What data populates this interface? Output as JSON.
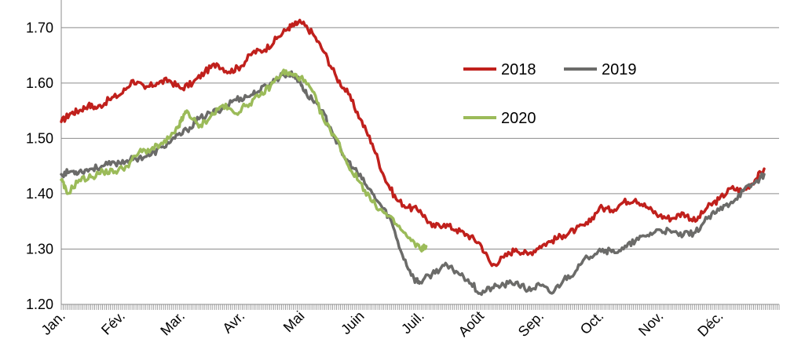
{
  "chart_data": {
    "type": "line",
    "title": "",
    "xlabel": "",
    "ylabel": "",
    "ylim": [
      1.2,
      1.75
    ],
    "yticks": [
      "1.20",
      "1.30",
      "1.40",
      "1.50",
      "1.60",
      "1.70"
    ],
    "grid": "horizontal",
    "legend_position": "top-right",
    "months": [
      "Jan.",
      "Fév.",
      "Mar.",
      "Avr.",
      "Mai",
      "Juin",
      "Juil.",
      "Août",
      "Sep.",
      "Oct.",
      "Nov.",
      "Déc."
    ],
    "series": [
      {
        "name": "2018",
        "color": "#c0201c",
        "x": [
          0,
          0.15,
          0.3,
          0.45,
          0.6,
          0.8,
          1.0,
          1.2,
          1.4,
          1.6,
          1.8,
          2.0,
          2.2,
          2.4,
          2.6,
          2.8,
          3.0,
          3.2,
          3.4,
          3.6,
          3.8,
          3.9,
          4.0,
          4.2,
          4.4,
          4.6,
          4.8,
          5.0,
          5.2,
          5.4,
          5.6,
          5.8,
          6.0,
          6.2,
          6.4,
          6.6,
          6.8,
          7.0,
          7.2,
          7.4,
          7.6,
          7.8,
          8.0,
          8.2,
          8.4,
          8.6,
          8.8,
          9.0,
          9.2,
          9.4,
          9.6,
          9.8,
          10.0,
          10.2,
          10.4,
          10.6,
          10.8,
          11.0,
          11.2,
          11.4,
          11.6,
          11.75
        ],
        "values": [
          1.53,
          1.545,
          1.55,
          1.56,
          1.555,
          1.57,
          1.58,
          1.605,
          1.59,
          1.6,
          1.605,
          1.59,
          1.6,
          1.62,
          1.635,
          1.62,
          1.63,
          1.655,
          1.66,
          1.68,
          1.7,
          1.705,
          1.71,
          1.69,
          1.655,
          1.61,
          1.58,
          1.535,
          1.49,
          1.43,
          1.39,
          1.375,
          1.37,
          1.34,
          1.345,
          1.335,
          1.325,
          1.31,
          1.27,
          1.285,
          1.3,
          1.29,
          1.305,
          1.315,
          1.325,
          1.335,
          1.345,
          1.375,
          1.37,
          1.385,
          1.39,
          1.375,
          1.36,
          1.355,
          1.365,
          1.35,
          1.375,
          1.39,
          1.41,
          1.405,
          1.425,
          1.445
        ]
      },
      {
        "name": "2019",
        "color": "#6b6b69",
        "x": [
          0,
          0.15,
          0.3,
          0.5,
          0.7,
          0.9,
          1.1,
          1.3,
          1.5,
          1.7,
          1.9,
          2.1,
          2.3,
          2.5,
          2.7,
          2.9,
          3.1,
          3.3,
          3.5,
          3.7,
          3.9,
          4.0,
          4.1,
          4.3,
          4.5,
          4.7,
          4.9,
          5.1,
          5.3,
          5.5,
          5.7,
          5.9,
          6.0,
          6.2,
          6.4,
          6.6,
          6.8,
          7.0,
          7.2,
          7.4,
          7.6,
          7.8,
          8.0,
          8.2,
          8.4,
          8.6,
          8.8,
          9.0,
          9.2,
          9.4,
          9.6,
          9.8,
          10.0,
          10.2,
          10.4,
          10.6,
          10.8,
          11.0,
          11.2,
          11.4,
          11.6,
          11.75
        ],
        "values": [
          1.435,
          1.44,
          1.44,
          1.445,
          1.45,
          1.455,
          1.46,
          1.465,
          1.47,
          1.485,
          1.5,
          1.515,
          1.535,
          1.545,
          1.555,
          1.57,
          1.575,
          1.585,
          1.6,
          1.615,
          1.615,
          1.6,
          1.58,
          1.56,
          1.52,
          1.47,
          1.445,
          1.415,
          1.385,
          1.355,
          1.29,
          1.245,
          1.24,
          1.255,
          1.27,
          1.26,
          1.245,
          1.22,
          1.23,
          1.235,
          1.24,
          1.225,
          1.235,
          1.22,
          1.245,
          1.26,
          1.285,
          1.3,
          1.295,
          1.3,
          1.315,
          1.325,
          1.335,
          1.33,
          1.325,
          1.33,
          1.355,
          1.37,
          1.385,
          1.405,
          1.42,
          1.435
        ]
      },
      {
        "name": "2020",
        "color": "#9bbb59",
        "x": [
          0,
          0.1,
          0.3,
          0.5,
          0.7,
          0.9,
          1.1,
          1.3,
          1.5,
          1.7,
          1.9,
          2.0,
          2.1,
          2.3,
          2.5,
          2.7,
          2.9,
          3.1,
          3.3,
          3.5,
          3.7,
          3.85,
          4.0,
          4.2,
          4.4,
          4.6,
          4.8,
          5.0,
          5.2,
          5.4,
          5.6,
          5.8,
          6.0,
          6.1
        ],
        "values": [
          1.425,
          1.4,
          1.425,
          1.43,
          1.44,
          1.44,
          1.45,
          1.475,
          1.48,
          1.49,
          1.51,
          1.53,
          1.55,
          1.52,
          1.54,
          1.56,
          1.545,
          1.56,
          1.575,
          1.595,
          1.62,
          1.615,
          1.61,
          1.585,
          1.53,
          1.5,
          1.45,
          1.42,
          1.385,
          1.365,
          1.345,
          1.32,
          1.3,
          1.305
        ]
      }
    ]
  }
}
